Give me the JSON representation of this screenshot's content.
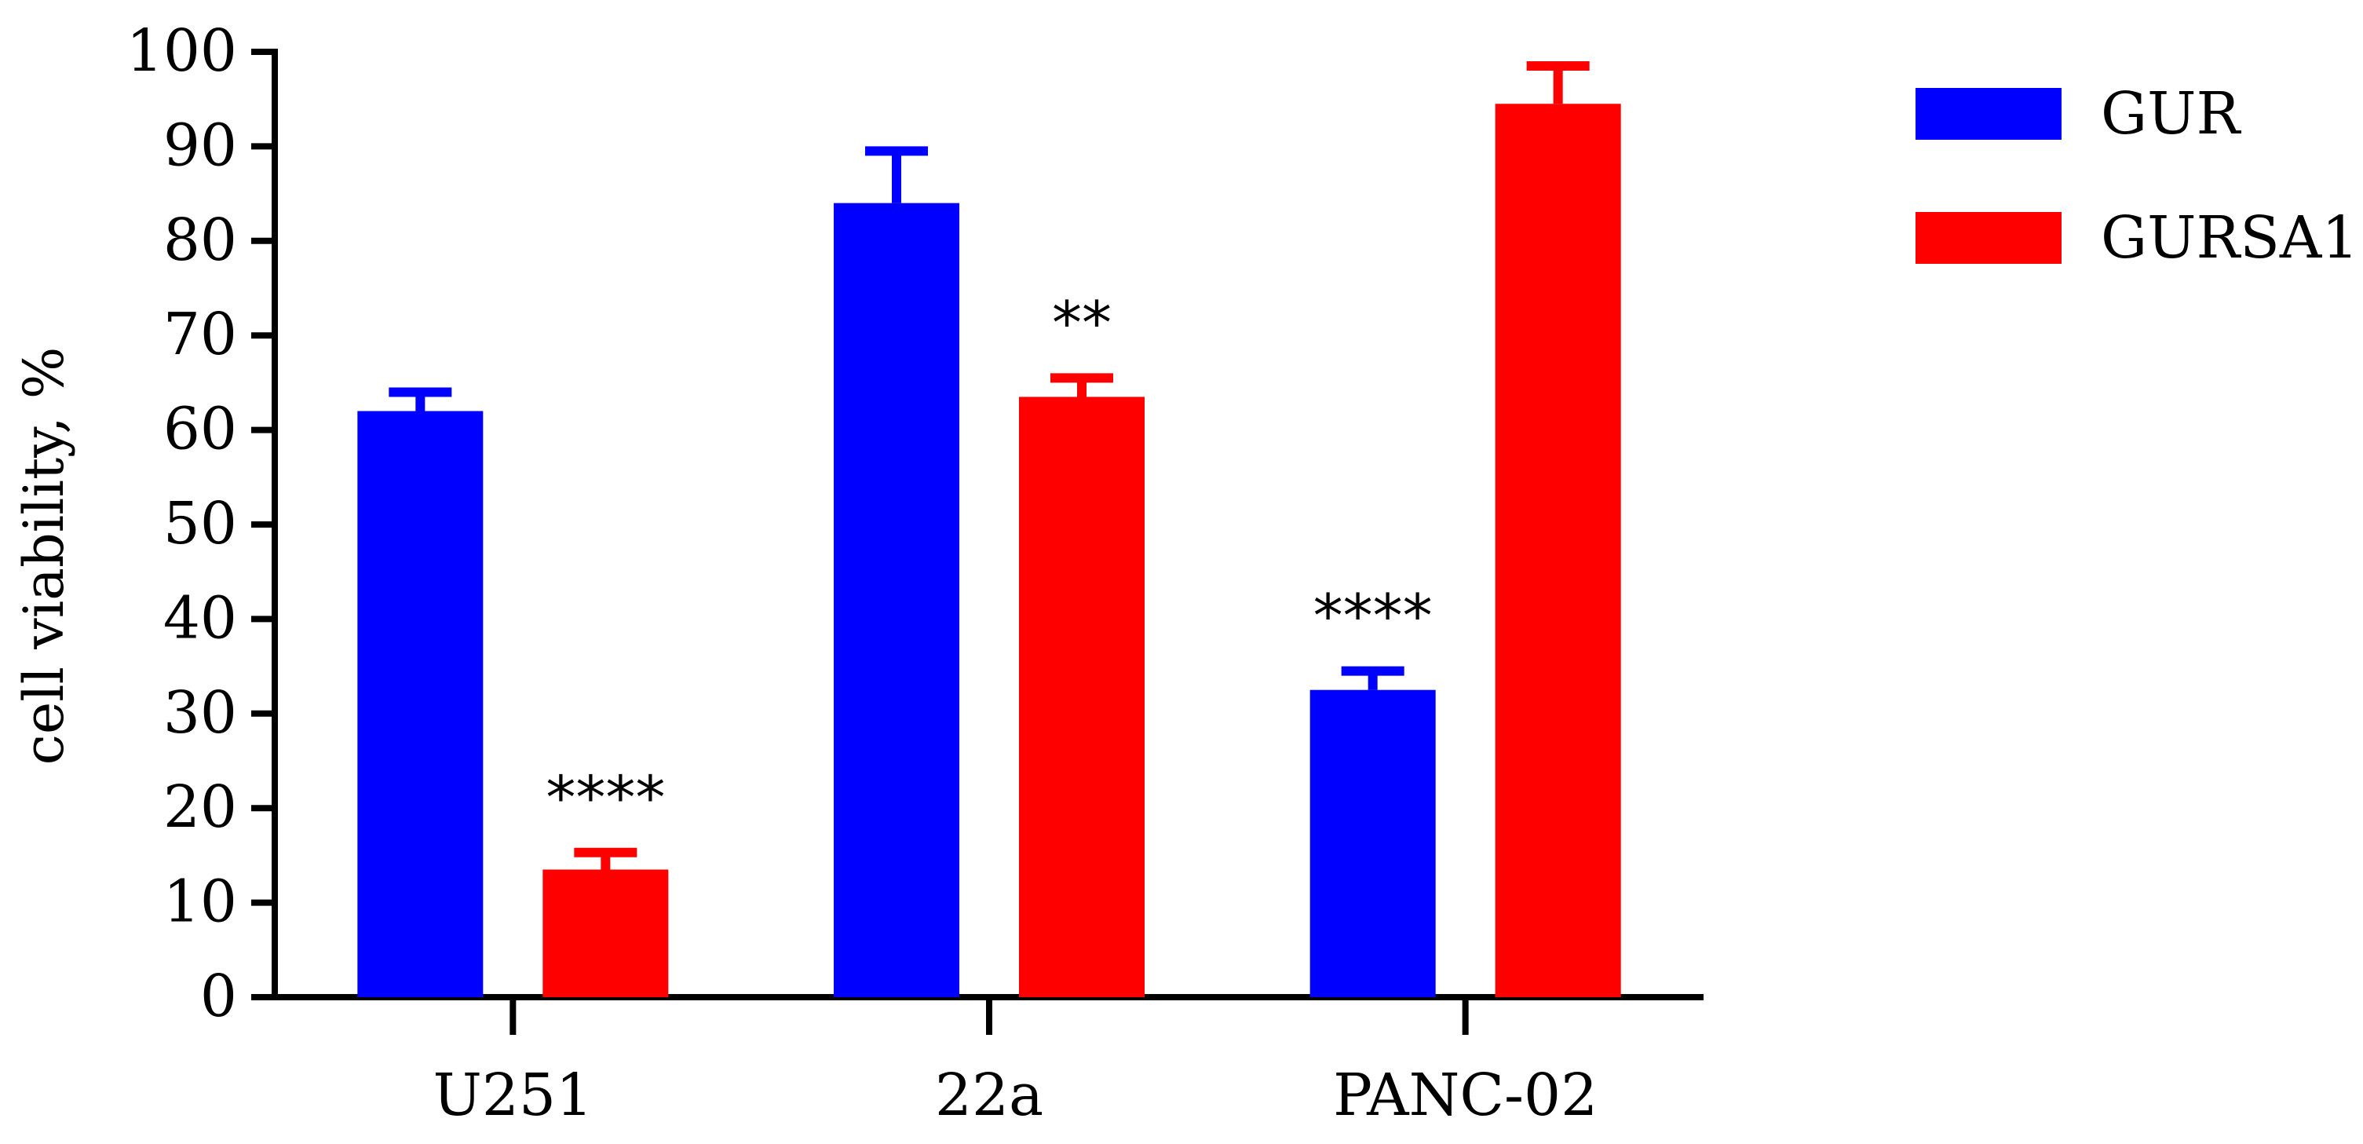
{
  "chart_data": {
    "type": "bar",
    "title": "",
    "xlabel": "",
    "ylabel": "cell viability, %",
    "ylim": [
      0,
      100
    ],
    "yticks": [
      0,
      10,
      20,
      30,
      40,
      50,
      60,
      70,
      80,
      90,
      100
    ],
    "grid": false,
    "legend_position": "top-right",
    "categories": [
      "U251",
      "22a",
      "PANC-02"
    ],
    "series": [
      {
        "name": "GUR",
        "color": "#0000ff",
        "values": [
          62,
          84,
          32.5
        ],
        "errors": [
          2,
          5.5,
          2
        ]
      },
      {
        "name": "GURSA1",
        "color": "#ff0000",
        "values": [
          13.5,
          63.5,
          94.5
        ],
        "errors": [
          1.8,
          2,
          4
        ]
      }
    ],
    "annotations": [
      {
        "category": "U251",
        "series": "GURSA1",
        "text": "****"
      },
      {
        "category": "22a",
        "series": "GURSA1",
        "text": "**"
      },
      {
        "category": "PANC-02",
        "series": "GUR",
        "text": "****"
      }
    ]
  }
}
